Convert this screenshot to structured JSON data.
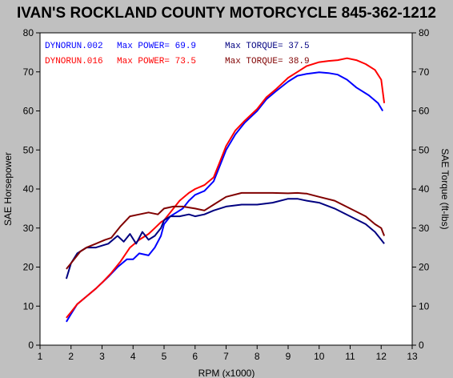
{
  "chart_data": {
    "type": "line",
    "title": "IVAN'S ROCKLAND COUNTY MOTORCYCLE 845-362-1212",
    "xlabel": "RPM (x1000)",
    "ylabel_left": "SAE Horsepower",
    "ylabel_right": "SAE Torque (ft-lbs)",
    "xlim": [
      1,
      13
    ],
    "ylim": [
      0,
      80
    ],
    "xticks": [
      "1",
      "2",
      "3",
      "4",
      "5",
      "6",
      "7",
      "8",
      "9",
      "10",
      "11",
      "12",
      "13"
    ],
    "yticks": [
      "0",
      "10",
      "20",
      "30",
      "40",
      "50",
      "60",
      "70",
      "80"
    ],
    "grid": false,
    "legend": [
      {
        "run": "DYNORUN.002",
        "power": "Max POWER= 69.9",
        "torque": "Max TORQUE= 37.5",
        "color": "#0000ff"
      },
      {
        "run": "DYNORUN.016",
        "power": "Max POWER= 73.5",
        "torque": "Max TORQUE= 38.9",
        "color": "#ff0000"
      }
    ],
    "series": [
      {
        "name": "DYNORUN.002",
        "measure": "power",
        "color": "#0000ff",
        "points": [
          [
            1.85,
            6
          ],
          [
            2,
            8
          ],
          [
            2.2,
            10.5
          ],
          [
            2.5,
            12.5
          ],
          [
            2.8,
            14.5
          ],
          [
            3,
            16
          ],
          [
            3.2,
            17.5
          ],
          [
            3.5,
            20
          ],
          [
            3.8,
            22
          ],
          [
            4,
            22
          ],
          [
            4.2,
            23.5
          ],
          [
            4.5,
            23
          ],
          [
            4.7,
            25
          ],
          [
            4.9,
            28
          ],
          [
            5,
            31
          ],
          [
            5.2,
            33
          ],
          [
            5.4,
            34
          ],
          [
            5.6,
            35
          ],
          [
            5.8,
            37
          ],
          [
            6,
            38.5
          ],
          [
            6.3,
            39.5
          ],
          [
            6.6,
            42
          ],
          [
            6.8,
            46
          ],
          [
            7,
            50
          ],
          [
            7.3,
            54
          ],
          [
            7.6,
            57
          ],
          [
            8,
            60
          ],
          [
            8.3,
            63
          ],
          [
            8.6,
            65
          ],
          [
            9,
            67.5
          ],
          [
            9.3,
            69
          ],
          [
            9.6,
            69.5
          ],
          [
            10,
            69.9
          ],
          [
            10.3,
            69.7
          ],
          [
            10.6,
            69.3
          ],
          [
            10.9,
            68
          ],
          [
            11.2,
            66
          ],
          [
            11.6,
            64
          ],
          [
            11.9,
            62
          ],
          [
            12.05,
            60
          ]
        ]
      },
      {
        "name": "DYNORUN.016",
        "measure": "power",
        "color": "#ff0000",
        "points": [
          [
            1.85,
            7
          ],
          [
            2,
            8.5
          ],
          [
            2.2,
            10.5
          ],
          [
            2.5,
            12.5
          ],
          [
            2.8,
            14.5
          ],
          [
            3,
            16
          ],
          [
            3.3,
            18.5
          ],
          [
            3.6,
            21.5
          ],
          [
            3.9,
            25
          ],
          [
            4.2,
            27
          ],
          [
            4.5,
            28.5
          ],
          [
            4.7,
            30
          ],
          [
            4.9,
            31.5
          ],
          [
            5,
            32
          ],
          [
            5.2,
            34
          ],
          [
            5.5,
            37
          ],
          [
            5.8,
            39
          ],
          [
            6,
            40
          ],
          [
            6.3,
            41
          ],
          [
            6.6,
            43
          ],
          [
            6.8,
            47
          ],
          [
            7,
            51
          ],
          [
            7.3,
            55
          ],
          [
            7.6,
            57.5
          ],
          [
            8,
            60.5
          ],
          [
            8.3,
            63.5
          ],
          [
            8.6,
            65.5
          ],
          [
            9,
            68.5
          ],
          [
            9.3,
            70
          ],
          [
            9.6,
            71.5
          ],
          [
            10,
            72.5
          ],
          [
            10.3,
            72.8
          ],
          [
            10.6,
            73
          ],
          [
            10.9,
            73.5
          ],
          [
            11.2,
            73
          ],
          [
            11.5,
            72
          ],
          [
            11.8,
            70.5
          ],
          [
            12,
            68
          ],
          [
            12.1,
            62
          ]
        ]
      },
      {
        "name": "DYNORUN.002",
        "measure": "torque",
        "color": "#000080",
        "points": [
          [
            1.85,
            17
          ],
          [
            2,
            21
          ],
          [
            2.2,
            23.5
          ],
          [
            2.5,
            25
          ],
          [
            2.8,
            25
          ],
          [
            3,
            25.5
          ],
          [
            3.2,
            26
          ],
          [
            3.5,
            28
          ],
          [
            3.7,
            26.5
          ],
          [
            3.9,
            28.5
          ],
          [
            4.1,
            26
          ],
          [
            4.3,
            29
          ],
          [
            4.5,
            27
          ],
          [
            4.7,
            28
          ],
          [
            4.9,
            30
          ],
          [
            5,
            32
          ],
          [
            5.2,
            33
          ],
          [
            5.5,
            33
          ],
          [
            5.8,
            33.5
          ],
          [
            6,
            33
          ],
          [
            6.3,
            33.5
          ],
          [
            6.6,
            34.5
          ],
          [
            7,
            35.5
          ],
          [
            7.5,
            36
          ],
          [
            8,
            36
          ],
          [
            8.5,
            36.5
          ],
          [
            9,
            37.5
          ],
          [
            9.3,
            37.5
          ],
          [
            9.6,
            37
          ],
          [
            10,
            36.5
          ],
          [
            10.5,
            35
          ],
          [
            11,
            33
          ],
          [
            11.5,
            31
          ],
          [
            11.8,
            29
          ],
          [
            12,
            27
          ],
          [
            12.1,
            26
          ]
        ]
      },
      {
        "name": "DYNORUN.016",
        "measure": "torque",
        "color": "#800000",
        "points": [
          [
            1.85,
            19.5
          ],
          [
            2,
            21
          ],
          [
            2.3,
            24
          ],
          [
            2.5,
            25
          ],
          [
            2.8,
            26
          ],
          [
            3.1,
            27
          ],
          [
            3.3,
            27.5
          ],
          [
            3.6,
            30.5
          ],
          [
            3.9,
            33
          ],
          [
            4.2,
            33.5
          ],
          [
            4.5,
            34
          ],
          [
            4.8,
            33.5
          ],
          [
            5,
            35
          ],
          [
            5.3,
            35.5
          ],
          [
            5.6,
            35.5
          ],
          [
            6,
            35
          ],
          [
            6.3,
            34.5
          ],
          [
            6.6,
            36
          ],
          [
            7,
            38
          ],
          [
            7.5,
            39
          ],
          [
            8,
            39
          ],
          [
            8.5,
            39
          ],
          [
            9,
            38.9
          ],
          [
            9.3,
            39
          ],
          [
            9.6,
            38.8
          ],
          [
            10,
            38
          ],
          [
            10.5,
            37
          ],
          [
            11,
            35
          ],
          [
            11.5,
            33
          ],
          [
            11.8,
            31
          ],
          [
            12,
            30
          ],
          [
            12.1,
            28
          ]
        ]
      }
    ]
  }
}
